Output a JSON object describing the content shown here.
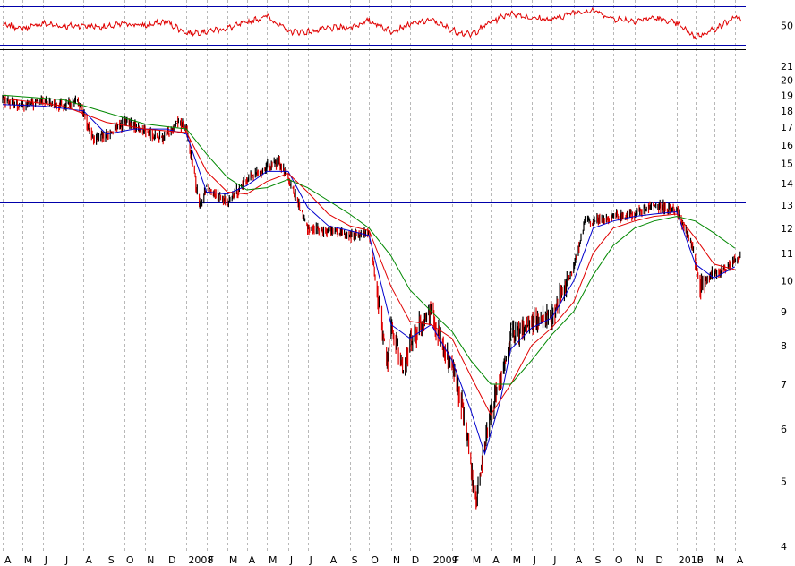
{
  "chart_data": [
    {
      "type": "line",
      "title": "",
      "role": "oscillator",
      "ylim": [
        25,
        75
      ],
      "yticks": [
        50
      ],
      "ytick_labels": [
        "50"
      ],
      "reference_levels": [
        30,
        70
      ],
      "series": [
        {
          "name": "",
          "color": "#e00000",
          "points": [
            [
              "2007-04-05",
              50
            ],
            [
              "2007-05-03",
              47
            ],
            [
              "2007-06-01",
              52
            ],
            [
              "2007-07-02",
              49
            ],
            [
              "2007-08-01",
              50
            ],
            [
              "2007-09-04",
              48
            ],
            [
              "2007-10-01",
              52
            ],
            [
              "2007-11-01",
              50
            ],
            [
              "2007-12-03",
              54
            ],
            [
              "2008-01-02",
              42
            ],
            [
              "2008-02-01",
              44
            ],
            [
              "2008-03-03",
              47
            ],
            [
              "2008-04-01",
              53
            ],
            [
              "2008-05-01",
              60
            ],
            [
              "2008-06-02",
              44
            ],
            [
              "2008-07-01",
              43
            ],
            [
              "2008-08-01",
              47
            ],
            [
              "2008-09-02",
              48
            ],
            [
              "2008-10-01",
              55
            ],
            [
              "2008-11-03",
              44
            ],
            [
              "2008-12-01",
              51
            ],
            [
              "2009-01-02",
              56
            ],
            [
              "2009-02-02",
              45
            ],
            [
              "2009-03-02",
              40
            ],
            [
              "2009-04-01",
              54
            ],
            [
              "2009-05-01",
              63
            ],
            [
              "2009-06-01",
              58
            ],
            [
              "2009-07-01",
              56
            ],
            [
              "2009-08-03",
              64
            ],
            [
              "2009-09-01",
              66
            ],
            [
              "2009-10-01",
              57
            ],
            [
              "2009-11-02",
              55
            ],
            [
              "2009-12-01",
              58
            ],
            [
              "2010-01-04",
              52
            ],
            [
              "2010-02-01",
              38
            ],
            [
              "2010-03-01",
              46
            ],
            [
              "2010-04-01",
              58
            ]
          ]
        }
      ]
    },
    {
      "type": "candlestick",
      "title": "",
      "role": "price",
      "yscale": "log",
      "ylim": [
        3.9,
        22.2
      ],
      "yticks": [
        4,
        5,
        6,
        7,
        8,
        9,
        10,
        11,
        12,
        13,
        14,
        15,
        16,
        17,
        18,
        19,
        20,
        21
      ],
      "ytick_labels": [
        "4",
        "5",
        "6",
        "7",
        "8",
        "9",
        "10",
        "11",
        "12",
        "13",
        "14",
        "15",
        "16",
        "17",
        "18",
        "19",
        "20",
        "21"
      ],
      "reference_levels": [
        13.1
      ],
      "xlim": [
        "2007-04-02",
        "2010-04-16"
      ],
      "x_ticks": [
        {
          "date": "2007-04-02",
          "label": "A"
        },
        {
          "date": "2007-05-01",
          "label": "M"
        },
        {
          "date": "2007-06-01",
          "label": "J"
        },
        {
          "date": "2007-07-02",
          "label": "J"
        },
        {
          "date": "2007-08-01",
          "label": "A"
        },
        {
          "date": "2007-09-04",
          "label": "S"
        },
        {
          "date": "2007-10-01",
          "label": "O"
        },
        {
          "date": "2007-11-01",
          "label": "N"
        },
        {
          "date": "2007-12-03",
          "label": "D"
        },
        {
          "date": "2008-01-02",
          "label": "2008"
        },
        {
          "date": "2008-02-01",
          "label": "F"
        },
        {
          "date": "2008-03-03",
          "label": "M"
        },
        {
          "date": "2008-04-01",
          "label": "A"
        },
        {
          "date": "2008-05-01",
          "label": "M"
        },
        {
          "date": "2008-06-02",
          "label": "J"
        },
        {
          "date": "2008-07-01",
          "label": "J"
        },
        {
          "date": "2008-08-01",
          "label": "A"
        },
        {
          "date": "2008-09-02",
          "label": "S"
        },
        {
          "date": "2008-10-01",
          "label": "O"
        },
        {
          "date": "2008-11-03",
          "label": "N"
        },
        {
          "date": "2008-12-01",
          "label": "D"
        },
        {
          "date": "2009-01-02",
          "label": "2009"
        },
        {
          "date": "2009-02-02",
          "label": "F"
        },
        {
          "date": "2009-03-02",
          "label": "M"
        },
        {
          "date": "2009-04-01",
          "label": "A"
        },
        {
          "date": "2009-05-01",
          "label": "M"
        },
        {
          "date": "2009-06-01",
          "label": "J"
        },
        {
          "date": "2009-07-01",
          "label": "J"
        },
        {
          "date": "2009-08-03",
          "label": "A"
        },
        {
          "date": "2009-09-01",
          "label": "S"
        },
        {
          "date": "2009-10-01",
          "label": "O"
        },
        {
          "date": "2009-11-02",
          "label": "N"
        },
        {
          "date": "2009-12-01",
          "label": "D"
        },
        {
          "date": "2010-01-04",
          "label": "2010"
        },
        {
          "date": "2010-02-01",
          "label": "F"
        },
        {
          "date": "2010-03-01",
          "label": "M"
        },
        {
          "date": "2010-04-01",
          "label": "A"
        }
      ],
      "candle_colors": {
        "up": "#000000",
        "down": "#e00000"
      },
      "price_path": [
        [
          "2007-04-02",
          18.7
        ],
        [
          "2007-05-01",
          18.3
        ],
        [
          "2007-06-01",
          18.6
        ],
        [
          "2007-07-02",
          18.3
        ],
        [
          "2007-07-25",
          18.5
        ],
        [
          "2007-08-16",
          16.3
        ],
        [
          "2007-09-04",
          16.5
        ],
        [
          "2007-10-01",
          17.3
        ],
        [
          "2007-11-01",
          16.8
        ],
        [
          "2007-11-26",
          16.3
        ],
        [
          "2007-12-20",
          17.4
        ],
        [
          "2008-01-02",
          16.9
        ],
        [
          "2008-01-22",
          12.9
        ],
        [
          "2008-02-01",
          13.9
        ],
        [
          "2008-03-03",
          13.1
        ],
        [
          "2008-04-01",
          14.2
        ],
        [
          "2008-05-01",
          14.8
        ],
        [
          "2008-05-19",
          15.1
        ],
        [
          "2008-06-02",
          14.3
        ],
        [
          "2008-07-01",
          12.0
        ],
        [
          "2008-08-01",
          11.9
        ],
        [
          "2008-09-02",
          11.7
        ],
        [
          "2008-10-01",
          11.8
        ],
        [
          "2008-10-28",
          7.5
        ],
        [
          "2008-11-03",
          8.6
        ],
        [
          "2008-11-21",
          7.3
        ],
        [
          "2008-12-01",
          8.1
        ],
        [
          "2009-01-02",
          9.1
        ],
        [
          "2009-01-20",
          7.9
        ],
        [
          "2009-02-02",
          7.5
        ],
        [
          "2009-02-20",
          6.3
        ],
        [
          "2009-03-09",
          4.6
        ],
        [
          "2009-03-20",
          5.5
        ],
        [
          "2009-04-01",
          6.3
        ],
        [
          "2009-05-01",
          8.2
        ],
        [
          "2009-06-01",
          8.7
        ],
        [
          "2009-07-01",
          8.8
        ],
        [
          "2009-08-03",
          10.5
        ],
        [
          "2009-08-20",
          12.3
        ],
        [
          "2009-09-01",
          12.3
        ],
        [
          "2009-10-01",
          12.5
        ],
        [
          "2009-11-02",
          12.6
        ],
        [
          "2009-12-01",
          13.0
        ],
        [
          "2010-01-04",
          12.8
        ],
        [
          "2010-01-25",
          11.5
        ],
        [
          "2010-02-08",
          9.8
        ],
        [
          "2010-03-01",
          10.3
        ],
        [
          "2010-03-15",
          10.4
        ],
        [
          "2010-04-09",
          10.9
        ]
      ],
      "series": [
        {
          "name": "",
          "color": "#0000cc",
          "points": [
            [
              "2007-04-02",
              18.4
            ],
            [
              "2007-06-01",
              18.3
            ],
            [
              "2007-08-01",
              18.0
            ],
            [
              "2007-09-04",
              16.6
            ],
            [
              "2007-10-15",
              16.9
            ],
            [
              "2007-12-03",
              16.9
            ],
            [
              "2008-01-02",
              16.6
            ],
            [
              "2008-02-01",
              13.6
            ],
            [
              "2008-03-03",
              13.5
            ],
            [
              "2008-04-01",
              13.9
            ],
            [
              "2008-05-01",
              14.6
            ],
            [
              "2008-06-02",
              14.6
            ],
            [
              "2008-07-01",
              12.9
            ],
            [
              "2008-08-01",
              12.1
            ],
            [
              "2008-09-02",
              11.9
            ],
            [
              "2008-10-01",
              11.7
            ],
            [
              "2008-11-03",
              8.6
            ],
            [
              "2008-12-01",
              8.2
            ],
            [
              "2009-01-02",
              8.6
            ],
            [
              "2009-02-02",
              7.6
            ],
            [
              "2009-03-02",
              6.4
            ],
            [
              "2009-03-23",
              5.5
            ],
            [
              "2009-04-15",
              6.6
            ],
            [
              "2009-05-01",
              7.9
            ],
            [
              "2009-06-01",
              8.5
            ],
            [
              "2009-07-01",
              8.8
            ],
            [
              "2009-08-03",
              10.0
            ],
            [
              "2009-09-01",
              12.0
            ],
            [
              "2009-10-01",
              12.3
            ],
            [
              "2009-11-02",
              12.5
            ],
            [
              "2009-12-01",
              12.6
            ],
            [
              "2010-01-04",
              12.7
            ],
            [
              "2010-02-01",
              10.6
            ],
            [
              "2010-03-01",
              10.1
            ],
            [
              "2010-04-01",
              10.5
            ]
          ]
        },
        {
          "name": "",
          "color": "#e00000",
          "points": [
            [
              "2007-04-02",
              18.8
            ],
            [
              "2007-07-02",
              18.3
            ],
            [
              "2007-09-04",
              17.3
            ],
            [
              "2007-11-01",
              16.9
            ],
            [
              "2008-01-02",
              16.7
            ],
            [
              "2008-02-01",
              14.6
            ],
            [
              "2008-03-03",
              13.6
            ],
            [
              "2008-04-01",
              13.5
            ],
            [
              "2008-05-01",
              14.1
            ],
            [
              "2008-06-02",
              14.5
            ],
            [
              "2008-07-01",
              13.6
            ],
            [
              "2008-08-01",
              12.6
            ],
            [
              "2008-09-02",
              12.1
            ],
            [
              "2008-10-01",
              11.9
            ],
            [
              "2008-11-03",
              9.8
            ],
            [
              "2008-12-01",
              8.7
            ],
            [
              "2009-01-02",
              8.6
            ],
            [
              "2009-02-02",
              8.2
            ],
            [
              "2009-03-02",
              7.2
            ],
            [
              "2009-04-01",
              6.3
            ],
            [
              "2009-05-01",
              7.0
            ],
            [
              "2009-06-01",
              8.0
            ],
            [
              "2009-07-01",
              8.5
            ],
            [
              "2009-08-03",
              9.3
            ],
            [
              "2009-09-01",
              11.0
            ],
            [
              "2009-10-01",
              12.0
            ],
            [
              "2009-11-02",
              12.3
            ],
            [
              "2009-12-01",
              12.5
            ],
            [
              "2010-01-04",
              12.6
            ],
            [
              "2010-02-01",
              11.6
            ],
            [
              "2010-03-01",
              10.6
            ],
            [
              "2010-04-01",
              10.4
            ]
          ]
        },
        {
          "name": "",
          "color": "#008800",
          "points": [
            [
              "2007-04-02",
              19.0
            ],
            [
              "2007-07-02",
              18.7
            ],
            [
              "2007-09-04",
              17.9
            ],
            [
              "2007-11-01",
              17.2
            ],
            [
              "2008-01-02",
              16.9
            ],
            [
              "2008-02-01",
              15.5
            ],
            [
              "2008-03-03",
              14.3
            ],
            [
              "2008-04-01",
              13.7
            ],
            [
              "2008-05-01",
              13.8
            ],
            [
              "2008-06-02",
              14.2
            ],
            [
              "2008-07-01",
              13.8
            ],
            [
              "2008-08-01",
              13.2
            ],
            [
              "2008-09-02",
              12.6
            ],
            [
              "2008-10-01",
              12.0
            ],
            [
              "2008-11-03",
              10.9
            ],
            [
              "2008-12-01",
              9.7
            ],
            [
              "2009-01-02",
              9.0
            ],
            [
              "2009-02-02",
              8.4
            ],
            [
              "2009-03-02",
              7.6
            ],
            [
              "2009-04-01",
              7.0
            ],
            [
              "2009-05-01",
              7.0
            ],
            [
              "2009-06-01",
              7.6
            ],
            [
              "2009-07-01",
              8.3
            ],
            [
              "2009-08-03",
              9.0
            ],
            [
              "2009-09-01",
              10.2
            ],
            [
              "2009-10-01",
              11.3
            ],
            [
              "2009-11-02",
              12.0
            ],
            [
              "2009-12-01",
              12.3
            ],
            [
              "2010-01-04",
              12.5
            ],
            [
              "2010-02-01",
              12.3
            ],
            [
              "2010-03-01",
              11.8
            ],
            [
              "2010-04-01",
              11.2
            ]
          ]
        }
      ]
    }
  ]
}
